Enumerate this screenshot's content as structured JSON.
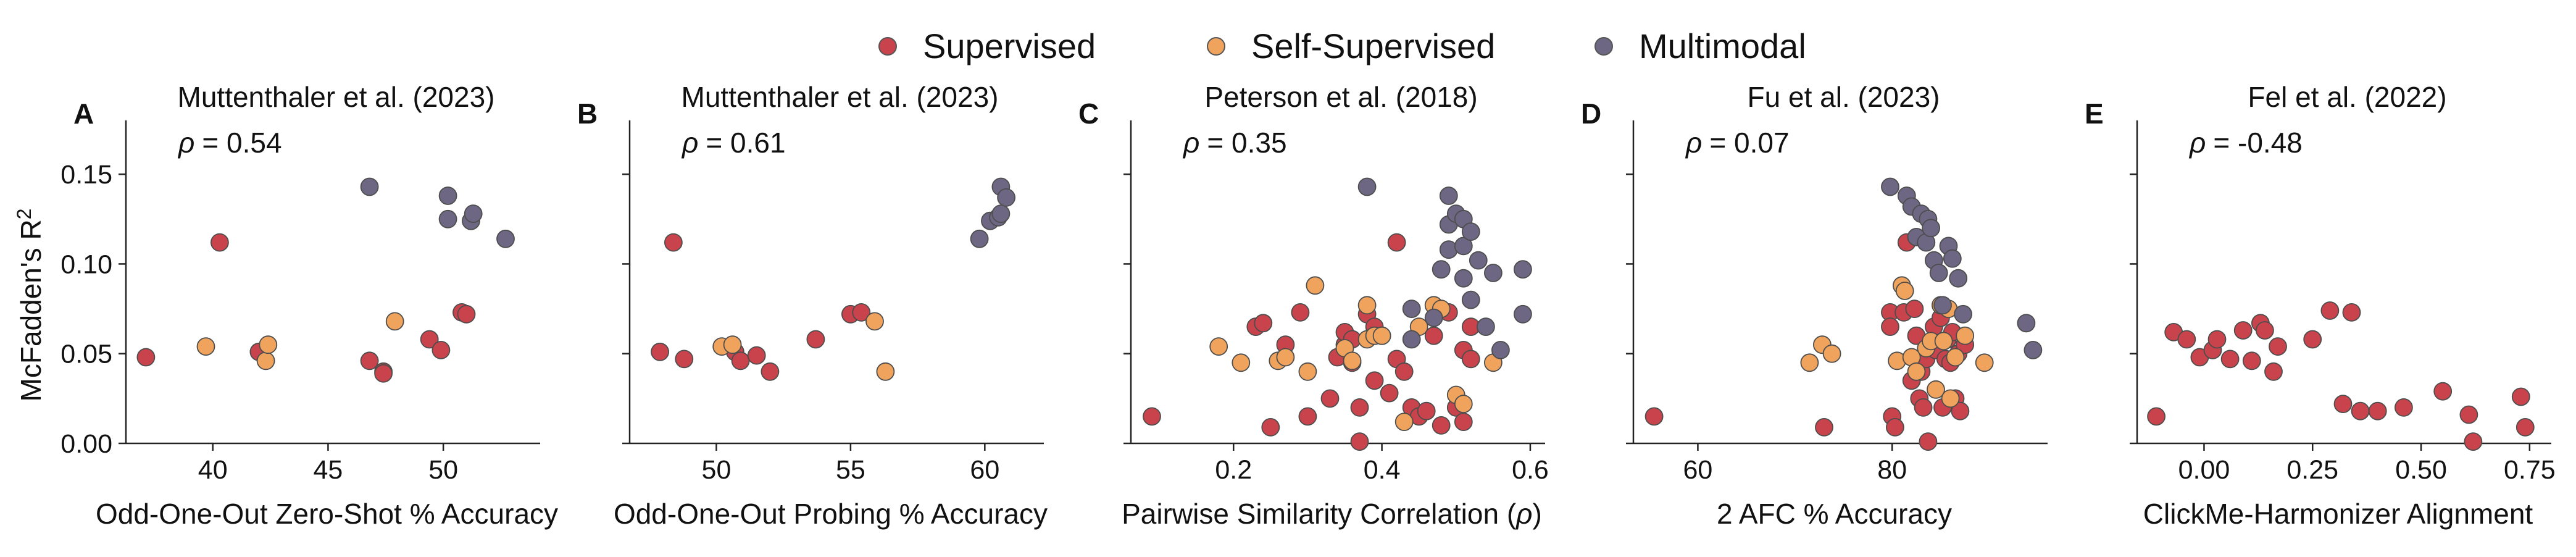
{
  "legend": [
    {
      "label": "Supervised",
      "color": "#c8434b"
    },
    {
      "label": "Self-Supervised",
      "color": "#efa35c"
    },
    {
      "label": "Multimodal",
      "color": "#6d6784"
    }
  ],
  "shared_ylabel": "McFadden's R",
  "shared_ylabel_sup": "2",
  "chart_data": [
    {
      "type": "scatter",
      "panel": "A",
      "title": "Muttenthaler et al. (2023)",
      "rho_symbol": "ρ",
      "rho_value": "= 0.54",
      "xlabel": "Odd-One-Out Zero-Shot % Accuracy",
      "xlabel_parts": [
        "Odd-One-Out Zero-Shot % Accuracy"
      ],
      "xlim": [
        36.5,
        54.2
      ],
      "ylim": [
        0,
        0.18
      ],
      "xticks": [
        40,
        45,
        50
      ],
      "xtick_labels": [
        "40",
        "45",
        "50"
      ],
      "yticks": [
        0,
        0.05,
        0.1,
        0.15
      ],
      "ytick_labels": [
        "0.00",
        "0.05",
        "0.10",
        "0.15"
      ],
      "series": [
        {
          "name": "Supervised",
          "points": [
            [
              37.1,
              0.048
            ],
            [
              40.3,
              0.112
            ],
            [
              42.0,
              0.051
            ],
            [
              46.8,
              0.046
            ],
            [
              47.4,
              0.04
            ],
            [
              47.4,
              0.039
            ],
            [
              49.4,
              0.058
            ],
            [
              49.9,
              0.052
            ],
            [
              50.8,
              0.073
            ],
            [
              51.0,
              0.072
            ]
          ]
        },
        {
          "name": "Self-Supervised",
          "points": [
            [
              39.7,
              0.054
            ],
            [
              42.3,
              0.046
            ],
            [
              42.4,
              0.055
            ],
            [
              47.9,
              0.068
            ]
          ]
        },
        {
          "name": "Multimodal",
          "points": [
            [
              46.8,
              0.143
            ],
            [
              50.2,
              0.138
            ],
            [
              50.2,
              0.125
            ],
            [
              51.2,
              0.124
            ],
            [
              51.3,
              0.128
            ],
            [
              52.7,
              0.114
            ]
          ]
        }
      ]
    },
    {
      "type": "scatter",
      "panel": "B",
      "title": "Muttenthaler et al. (2023)",
      "rho_symbol": "ρ",
      "rho_value": "= 0.61",
      "xlabel": "Odd-One-Out Probing % Accuracy",
      "xlabel_parts": [
        "Odd-One-Out Probing % Accuracy"
      ],
      "xlim": [
        47.0,
        62.2
      ],
      "ylim": [
        0,
        0.18
      ],
      "xticks": [
        50,
        55,
        60
      ],
      "xtick_labels": [
        "50",
        "55",
        "60"
      ],
      "yticks": [
        0,
        0.05,
        0.1,
        0.15
      ],
      "ytick_labels": [
        "",
        "",
        "",
        ""
      ],
      "series": [
        {
          "name": "Supervised",
          "points": [
            [
              47.9,
              0.051
            ],
            [
              48.4,
              0.112
            ],
            [
              48.8,
              0.047
            ],
            [
              50.7,
              0.051
            ],
            [
              50.9,
              0.046
            ],
            [
              51.5,
              0.049
            ],
            [
              52.0,
              0.04
            ],
            [
              53.7,
              0.058
            ],
            [
              55.0,
              0.072
            ],
            [
              55.4,
              0.073
            ]
          ]
        },
        {
          "name": "Self-Supervised",
          "points": [
            [
              50.2,
              0.054
            ],
            [
              50.6,
              0.055
            ],
            [
              55.9,
              0.068
            ],
            [
              56.3,
              0.04
            ]
          ]
        },
        {
          "name": "Multimodal",
          "points": [
            [
              59.8,
              0.114
            ],
            [
              60.2,
              0.124
            ],
            [
              60.5,
              0.126
            ],
            [
              60.6,
              0.128
            ],
            [
              60.6,
              0.143
            ],
            [
              60.8,
              0.137
            ]
          ]
        }
      ]
    },
    {
      "type": "scatter",
      "panel": "C",
      "title": "Peterson et al. (2018)",
      "rho_symbol": "ρ",
      "rho_value": "= 0.35",
      "xlabel": "Pairwise Similarity Correlation (ρ)",
      "xlabel_parts": [
        "Pairwise Similarity Correlation (",
        "ρ",
        ")"
      ],
      "xlim": [
        0.07,
        0.62
      ],
      "ylim": [
        0,
        0.18
      ],
      "xticks": [
        0.2,
        0.4,
        0.6
      ],
      "xtick_labels": [
        "0.2",
        "0.4",
        "0.6"
      ],
      "yticks": [
        0,
        0.05,
        0.1,
        0.15
      ],
      "ytick_labels": [
        "",
        "",
        "",
        ""
      ],
      "series": [
        {
          "name": "Supervised",
          "points": [
            [
              0.09,
              0.015
            ],
            [
              0.23,
              0.065
            ],
            [
              0.24,
              0.067
            ],
            [
              0.25,
              0.009
            ],
            [
              0.27,
              0.055
            ],
            [
              0.29,
              0.073
            ],
            [
              0.3,
              0.015
            ],
            [
              0.33,
              0.025
            ],
            [
              0.34,
              0.048
            ],
            [
              0.35,
              0.055
            ],
            [
              0.35,
              0.062
            ],
            [
              0.36,
              0.058
            ],
            [
              0.36,
              0.045
            ],
            [
              0.37,
              0.02
            ],
            [
              0.37,
              0.001
            ],
            [
              0.38,
              0.072
            ],
            [
              0.39,
              0.065
            ],
            [
              0.39,
              0.035
            ],
            [
              0.4,
              0.06
            ],
            [
              0.41,
              0.028
            ],
            [
              0.42,
              0.047
            ],
            [
              0.42,
              0.112
            ],
            [
              0.43,
              0.04
            ],
            [
              0.44,
              0.02
            ],
            [
              0.45,
              0.015
            ],
            [
              0.46,
              0.018
            ],
            [
              0.47,
              0.06
            ],
            [
              0.48,
              0.01
            ],
            [
              0.49,
              0.073
            ],
            [
              0.5,
              0.02
            ],
            [
              0.51,
              0.052
            ],
            [
              0.51,
              0.012
            ],
            [
              0.52,
              0.047
            ],
            [
              0.52,
              0.065
            ]
          ]
        },
        {
          "name": "Self-Supervised",
          "points": [
            [
              0.18,
              0.054
            ],
            [
              0.21,
              0.045
            ],
            [
              0.26,
              0.046
            ],
            [
              0.27,
              0.048
            ],
            [
              0.3,
              0.04
            ],
            [
              0.31,
              0.088
            ],
            [
              0.35,
              0.053
            ],
            [
              0.36,
              0.046
            ],
            [
              0.38,
              0.077
            ],
            [
              0.38,
              0.058
            ],
            [
              0.39,
              0.06
            ],
            [
              0.4,
              0.06
            ],
            [
              0.43,
              0.012
            ],
            [
              0.45,
              0.065
            ],
            [
              0.47,
              0.077
            ],
            [
              0.48,
              0.075
            ],
            [
              0.5,
              0.027
            ],
            [
              0.51,
              0.022
            ],
            [
              0.55,
              0.045
            ]
          ]
        },
        {
          "name": "Multimodal",
          "points": [
            [
              0.38,
              0.143
            ],
            [
              0.44,
              0.075
            ],
            [
              0.44,
              0.058
            ],
            [
              0.47,
              0.07
            ],
            [
              0.48,
              0.097
            ],
            [
              0.49,
              0.138
            ],
            [
              0.49,
              0.122
            ],
            [
              0.49,
              0.108
            ],
            [
              0.5,
              0.128
            ],
            [
              0.51,
              0.125
            ],
            [
              0.51,
              0.11
            ],
            [
              0.51,
              0.092
            ],
            [
              0.52,
              0.118
            ],
            [
              0.52,
              0.08
            ],
            [
              0.53,
              0.102
            ],
            [
              0.54,
              0.065
            ],
            [
              0.55,
              0.095
            ],
            [
              0.56,
              0.052
            ],
            [
              0.59,
              0.097
            ],
            [
              0.59,
              0.072
            ]
          ]
        }
      ]
    },
    {
      "type": "scatter",
      "panel": "D",
      "title": "Fu et al. (2023)",
      "rho_symbol": "ρ",
      "rho_value": "= 0.07",
      "xlabel": "2 AFC % Accuracy",
      "xlabel_parts": [
        "2 AFC % Accuracy"
      ],
      "xlim": [
        54,
        96
      ],
      "ylim": [
        0,
        0.18
      ],
      "xticks": [
        60,
        80
      ],
      "xtick_labels": [
        "60",
        "80"
      ],
      "yticks": [
        0,
        0.05,
        0.1,
        0.15
      ],
      "ytick_labels": [
        "",
        "",
        "",
        ""
      ],
      "series": [
        {
          "name": "Supervised",
          "points": [
            [
              55.5,
              0.015
            ],
            [
              73.0,
              0.009
            ],
            [
              79.8,
              0.073
            ],
            [
              79.8,
              0.065
            ],
            [
              80.0,
              0.015
            ],
            [
              80.3,
              0.009
            ],
            [
              81.2,
              0.073
            ],
            [
              81.5,
              0.112
            ],
            [
              82.0,
              0.035
            ],
            [
              82.3,
              0.075
            ],
            [
              82.5,
              0.06
            ],
            [
              82.8,
              0.025
            ],
            [
              83.0,
              0.04
            ],
            [
              83.2,
              0.02
            ],
            [
              83.5,
              0.047
            ],
            [
              83.7,
              0.001
            ],
            [
              84.0,
              0.055
            ],
            [
              84.3,
              0.065
            ],
            [
              84.5,
              0.052
            ],
            [
              85.0,
              0.07
            ],
            [
              85.2,
              0.02
            ],
            [
              85.5,
              0.047
            ],
            [
              85.7,
              0.058
            ],
            [
              86.0,
              0.045
            ],
            [
              86.2,
              0.062
            ],
            [
              86.5,
              0.025
            ],
            [
              86.8,
              0.05
            ],
            [
              87.0,
              0.018
            ],
            [
              87.5,
              0.055
            ]
          ]
        },
        {
          "name": "Self-Supervised",
          "points": [
            [
              72.8,
              0.055
            ],
            [
              73.8,
              0.05
            ],
            [
              71.5,
              0.045
            ],
            [
              80.5,
              0.046
            ],
            [
              81.0,
              0.088
            ],
            [
              81.3,
              0.085
            ],
            [
              82.0,
              0.048
            ],
            [
              82.5,
              0.04
            ],
            [
              83.5,
              0.053
            ],
            [
              84.0,
              0.057
            ],
            [
              84.5,
              0.03
            ],
            [
              85.0,
              0.077
            ],
            [
              85.3,
              0.057
            ],
            [
              85.8,
              0.075
            ],
            [
              86.0,
              0.025
            ],
            [
              86.5,
              0.048
            ],
            [
              87.5,
              0.06
            ],
            [
              89.5,
              0.045
            ]
          ]
        },
        {
          "name": "Multimodal",
          "points": [
            [
              79.8,
              0.143
            ],
            [
              81.5,
              0.138
            ],
            [
              82.0,
              0.132
            ],
            [
              82.5,
              0.115
            ],
            [
              83.0,
              0.128
            ],
            [
              83.5,
              0.112
            ],
            [
              83.7,
              0.125
            ],
            [
              84.0,
              0.12
            ],
            [
              84.3,
              0.102
            ],
            [
              84.8,
              0.095
            ],
            [
              85.2,
              0.077
            ],
            [
              85.8,
              0.11
            ],
            [
              86.2,
              0.103
            ],
            [
              86.8,
              0.092
            ],
            [
              87.3,
              0.072
            ],
            [
              93.8,
              0.067
            ],
            [
              94.5,
              0.052
            ]
          ]
        }
      ]
    },
    {
      "type": "scatter",
      "panel": "E",
      "title": "Fel et al. (2022)",
      "rho_symbol": "ρ",
      "rho_value": "= -0.48",
      "xlabel": "ClickMe-Harmonizer Alignment",
      "xlabel_parts": [
        "ClickMe-Harmonizer Alignment"
      ],
      "xlim": [
        -0.14,
        0.8
      ],
      "ylim": [
        0,
        0.18
      ],
      "xticks": [
        0.0,
        0.25,
        0.5,
        0.75
      ],
      "xtick_labels": [
        "0.00",
        "0.25",
        "0.50",
        "0.75"
      ],
      "yticks": [
        0,
        0.05,
        0.1,
        0.15
      ],
      "ytick_labels": [
        "",
        "",
        "",
        ""
      ],
      "series": [
        {
          "name": "Supervised",
          "points": [
            [
              -0.11,
              0.015
            ],
            [
              -0.07,
              0.062
            ],
            [
              -0.04,
              0.058
            ],
            [
              -0.01,
              0.048
            ],
            [
              0.02,
              0.052
            ],
            [
              0.03,
              0.058
            ],
            [
              0.06,
              0.047
            ],
            [
              0.09,
              0.063
            ],
            [
              0.11,
              0.046
            ],
            [
              0.13,
              0.067
            ],
            [
              0.14,
              0.063
            ],
            [
              0.16,
              0.04
            ],
            [
              0.17,
              0.054
            ],
            [
              0.25,
              0.058
            ],
            [
              0.29,
              0.074
            ],
            [
              0.32,
              0.022
            ],
            [
              0.34,
              0.073
            ],
            [
              0.36,
              0.018
            ],
            [
              0.4,
              0.018
            ],
            [
              0.46,
              0.02
            ],
            [
              0.55,
              0.029
            ],
            [
              0.61,
              0.016
            ],
            [
              0.73,
              0.026
            ],
            [
              0.74,
              0.009
            ],
            [
              0.62,
              0.001
            ]
          ]
        },
        {
          "name": "Self-Supervised",
          "points": []
        },
        {
          "name": "Multimodal",
          "points": []
        }
      ]
    }
  ]
}
